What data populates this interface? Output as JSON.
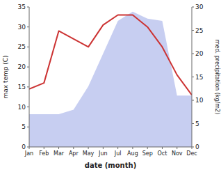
{
  "chart_data": {
    "type": "line",
    "categories": [
      "Jan",
      "Feb",
      "Mar",
      "Apr",
      "May",
      "Jun",
      "Jul",
      "Aug",
      "Sep",
      "Oct",
      "Nov",
      "Dec"
    ],
    "xlabel": "date (month)",
    "ylabel": "max temp (C)",
    "y2label": "med. precipitation (kg/m2)",
    "series": [
      {
        "type": "area",
        "axis": "y2",
        "color": "#bdc5ee",
        "values": [
          7.0,
          7.0,
          7.0,
          8.0,
          13.0,
          20.0,
          27.0,
          29.0,
          27.5,
          27.0,
          11.0,
          11.0
        ]
      },
      {
        "type": "line",
        "color": "#cc3333",
        "values": [
          14.5,
          16.0,
          29.0,
          27.0,
          25.0,
          30.5,
          33.0,
          33.0,
          30.0,
          25.0,
          18.0,
          13.0
        ]
      }
    ],
    "ylim": [
      0,
      35
    ],
    "yticks": [
      0,
      5,
      10,
      15,
      20,
      25,
      30,
      35
    ],
    "y2lim": [
      0,
      30
    ],
    "y2ticks": [
      0,
      5,
      10,
      15,
      20,
      25,
      30
    ],
    "grid": false
  }
}
